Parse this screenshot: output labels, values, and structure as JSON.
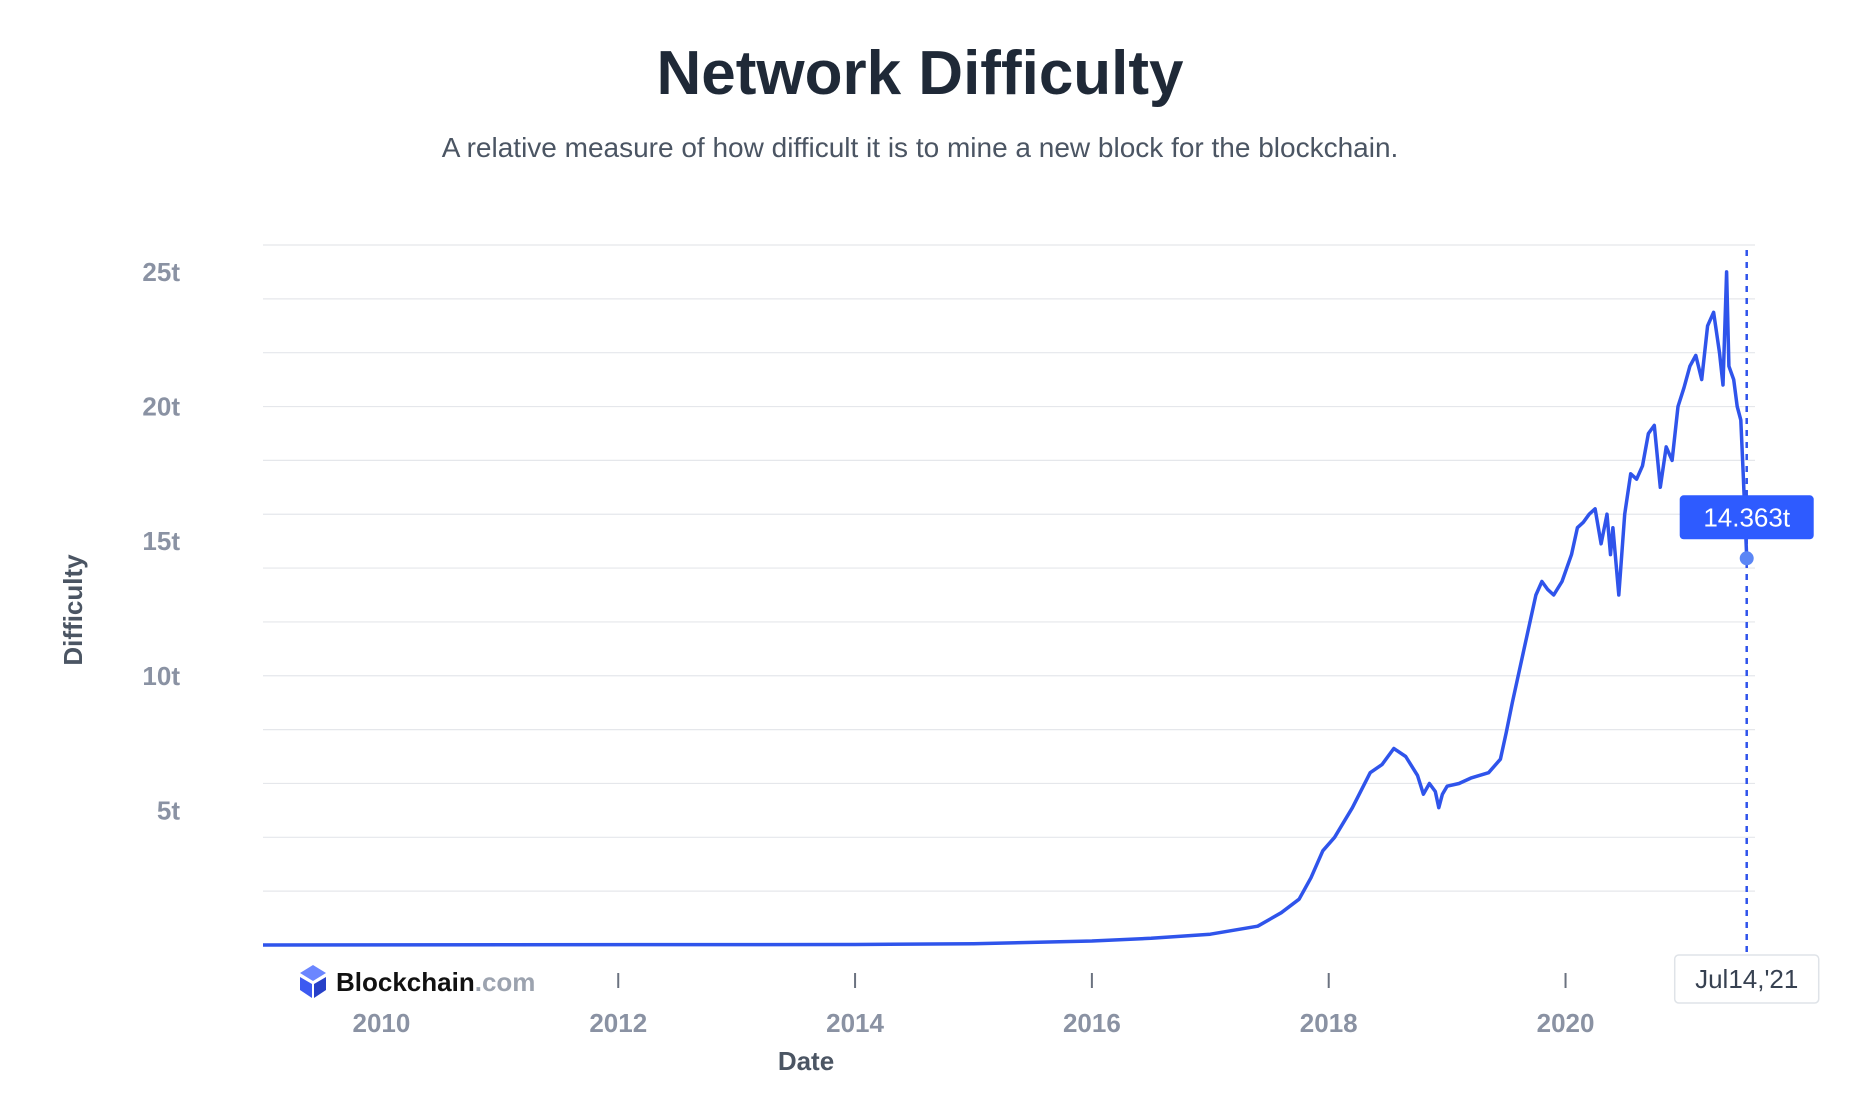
{
  "chart_data": {
    "type": "line",
    "title": "Network Difficulty",
    "subtitle": "A relative measure of how difficult it is to mine a new block for the blockchain.",
    "xlabel": "Date",
    "ylabel": "Difficulty",
    "xlim": [
      2009.0,
      2021.6
    ],
    "ylim": [
      0,
      26
    ],
    "x_ticks": [
      {
        "value": 2010,
        "label": "2010"
      },
      {
        "value": 2012,
        "label": "2012"
      },
      {
        "value": 2014,
        "label": "2014"
      },
      {
        "value": 2016,
        "label": "2016"
      },
      {
        "value": 2018,
        "label": "2018"
      },
      {
        "value": 2020,
        "label": "2020"
      }
    ],
    "y_ticks": [
      {
        "value": 5,
        "label": "5t"
      },
      {
        "value": 10,
        "label": "10t"
      },
      {
        "value": 15,
        "label": "15t"
      },
      {
        "value": 20,
        "label": "20t"
      },
      {
        "value": 25,
        "label": "25t"
      }
    ],
    "grid_step": 2,
    "series": [
      {
        "name": "Difficulty",
        "color": "#2f54eb",
        "x": [
          2009.0,
          2014.0,
          2015.0,
          2016.0,
          2016.5,
          2017.0,
          2017.4,
          2017.6,
          2017.75,
          2017.85,
          2017.95,
          2018.05,
          2018.2,
          2018.35,
          2018.45,
          2018.55,
          2018.65,
          2018.75,
          2018.8,
          2018.85,
          2018.9,
          2018.93,
          2018.96,
          2019.0,
          2019.1,
          2019.2,
          2019.35,
          2019.45,
          2019.5,
          2019.55,
          2019.6,
          2019.65,
          2019.7,
          2019.75,
          2019.8,
          2019.85,
          2019.9,
          2019.97,
          2020.05,
          2020.1,
          2020.15,
          2020.2,
          2020.25,
          2020.3,
          2020.35,
          2020.38,
          2020.4,
          2020.45,
          2020.5,
          2020.55,
          2020.6,
          2020.65,
          2020.7,
          2020.75,
          2020.8,
          2020.85,
          2020.9,
          2020.95,
          2021.0,
          2021.05,
          2021.1,
          2021.15,
          2021.2,
          2021.25,
          2021.3,
          2021.33,
          2021.36,
          2021.38,
          2021.42,
          2021.45,
          2021.48,
          2021.5,
          2021.53
        ],
        "values": [
          0.0,
          0.02,
          0.05,
          0.15,
          0.25,
          0.4,
          0.7,
          1.2,
          1.7,
          2.5,
          3.5,
          4.0,
          5.1,
          6.4,
          6.7,
          7.3,
          7.0,
          6.3,
          5.6,
          6.0,
          5.7,
          5.1,
          5.6,
          5.9,
          6.0,
          6.2,
          6.4,
          6.9,
          7.9,
          9.0,
          10.0,
          11.0,
          12.0,
          13.0,
          13.5,
          13.2,
          13.0,
          13.5,
          14.5,
          15.5,
          15.7,
          16.0,
          16.2,
          14.9,
          16.0,
          14.5,
          15.5,
          13.0,
          16.0,
          17.5,
          17.3,
          17.8,
          19.0,
          19.3,
          17.0,
          18.5,
          18.0,
          20.0,
          20.7,
          21.5,
          21.9,
          21.0,
          23.0,
          23.5,
          22.0,
          20.8,
          25.0,
          21.5,
          21.0,
          20.0,
          19.5,
          17.5,
          14.4
        ]
      }
    ],
    "highlight": {
      "x": 2021.53,
      "value": 14.363,
      "value_label": "14.363t",
      "date_label": "Jul14,'21"
    }
  },
  "brand": {
    "name": "Blockchain",
    "suffix": ".com"
  },
  "colors": {
    "line": "#2f54eb",
    "tooltip": "#2e5bff",
    "brand_icon": "#3d5af1"
  }
}
